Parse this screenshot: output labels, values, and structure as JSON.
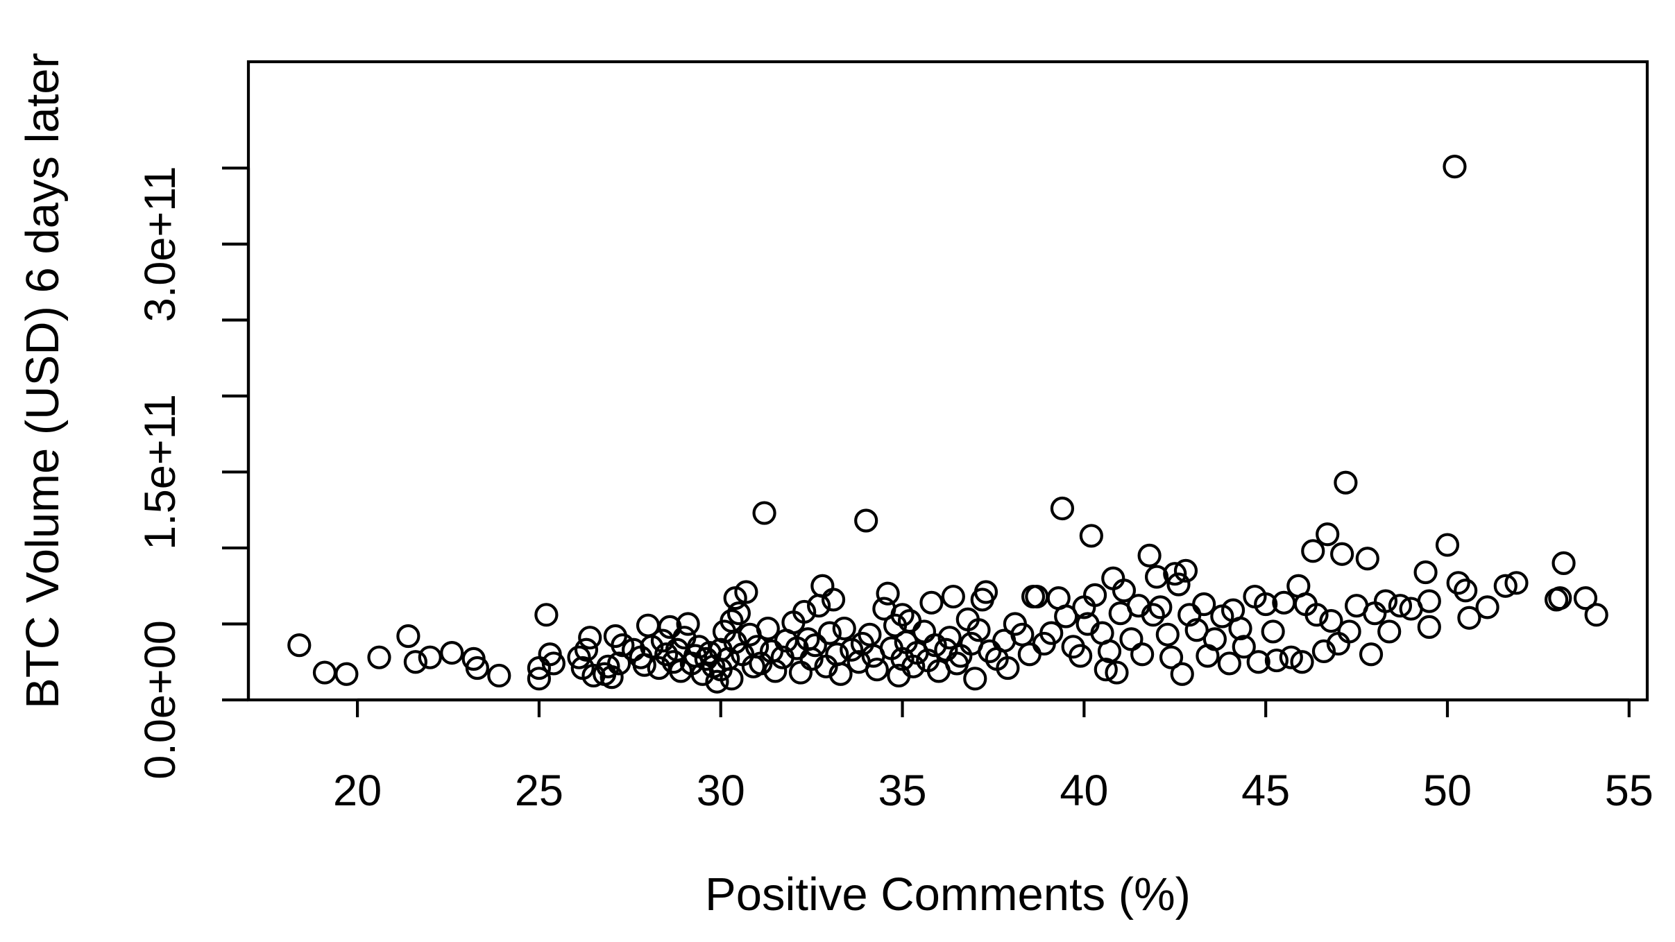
{
  "chart_data": {
    "type": "scatter",
    "title": "",
    "xlabel": "Positive Comments (%)",
    "ylabel": "BTC Volume (USD) 6 days later",
    "xlim": [
      17.0,
      55.5
    ],
    "ylim": [
      0,
      420000000000
    ],
    "grid": false,
    "legend": "none",
    "x_ticks": [
      {
        "value": 20,
        "label": "20"
      },
      {
        "value": 25,
        "label": "25"
      },
      {
        "value": 30,
        "label": "30"
      },
      {
        "value": 35,
        "label": "35"
      },
      {
        "value": 40,
        "label": "40"
      },
      {
        "value": 45,
        "label": "45"
      },
      {
        "value": 50,
        "label": "50"
      },
      {
        "value": 55,
        "label": "55"
      }
    ],
    "y_ticks": [
      0,
      50000000000,
      100000000000,
      150000000000,
      200000000000,
      250000000000,
      300000000000,
      350000000000
    ],
    "y_tick_labels": [
      {
        "value": 0,
        "label": "0.0e+00"
      },
      {
        "value": 150000000000,
        "label": "1.5e+11"
      },
      {
        "value": 300000000000,
        "label": "3.0e+11"
      }
    ],
    "series": [
      {
        "marker": "open-circle",
        "color": "#000000",
        "points": [
          [
            18.4,
            36000000000.0
          ],
          [
            19.1,
            18000000000.0
          ],
          [
            19.7,
            17000000000.0
          ],
          [
            20.6,
            28000000000.0
          ],
          [
            21.4,
            42000000000.0
          ],
          [
            21.6,
            25000000000.0
          ],
          [
            22.0,
            28000000000.0
          ],
          [
            22.6,
            31000000000.0
          ],
          [
            23.2,
            27000000000.0
          ],
          [
            23.3,
            21000000000.0
          ],
          [
            23.9,
            16000000000.0
          ],
          [
            25.0,
            21000000000.0
          ],
          [
            25.0,
            14000000000.0
          ],
          [
            25.2,
            56000000000.0
          ],
          [
            25.3,
            30000000000.0
          ],
          [
            25.4,
            24000000000.0
          ],
          [
            26.1,
            28000000000.0
          ],
          [
            26.2,
            21000000000.0
          ],
          [
            26.3,
            33000000000.0
          ],
          [
            26.4,
            41000000000.0
          ],
          [
            26.5,
            16000000000.0
          ],
          [
            26.8,
            17000000000.0
          ],
          [
            26.9,
            22000000000.0
          ],
          [
            27.0,
            15000000000.0
          ],
          [
            27.1,
            42000000000.0
          ],
          [
            27.2,
            24000000000.0
          ],
          [
            27.3,
            36000000000.0
          ],
          [
            27.6,
            33000000000.0
          ],
          [
            27.8,
            28000000000.0
          ],
          [
            27.9,
            23000000000.0
          ],
          [
            28.0,
            49000000000.0
          ],
          [
            28.1,
            35000000000.0
          ],
          [
            28.3,
            21000000000.0
          ],
          [
            28.4,
            39000000000.0
          ],
          [
            28.5,
            30000000000.0
          ],
          [
            28.6,
            48000000000.0
          ],
          [
            28.7,
            25000000000.0
          ],
          [
            28.8,
            33000000000.0
          ],
          [
            28.9,
            19000000000.0
          ],
          [
            29.0,
            41000000000.0
          ],
          [
            29.1,
            50000000000.0
          ],
          [
            29.2,
            24000000000.0
          ],
          [
            29.3,
            29000000000.0
          ],
          [
            29.4,
            35000000000.0
          ],
          [
            29.5,
            17000000000.0
          ],
          [
            29.6,
            27000000000.0
          ],
          [
            29.7,
            31000000000.0
          ],
          [
            29.8,
            22000000000.0
          ],
          [
            29.9,
            12000000000.0
          ],
          [
            30.0,
            33000000000.0
          ],
          [
            30.0,
            20000000000.0
          ],
          [
            30.1,
            45000000000.0
          ],
          [
            30.2,
            27000000000.0
          ],
          [
            30.3,
            52000000000.0
          ],
          [
            30.3,
            14000000000.0
          ],
          [
            30.4,
            38000000000.0
          ],
          [
            30.4,
            67000000000.0
          ],
          [
            30.5,
            57000000000.0
          ],
          [
            30.6,
            30000000000.0
          ],
          [
            30.7,
            71000000000.0
          ],
          [
            30.8,
            43000000000.0
          ],
          [
            30.9,
            22000000000.0
          ],
          [
            31.0,
            35000000000.0
          ],
          [
            31.1,
            24000000000.0
          ],
          [
            31.2,
            123000000000.0
          ],
          [
            31.3,
            47000000000.0
          ],
          [
            31.4,
            32000000000.0
          ],
          [
            31.5,
            19000000000.0
          ],
          [
            31.7,
            28000000000.0
          ],
          [
            31.8,
            39000000000.0
          ],
          [
            32.0,
            51000000000.0
          ],
          [
            32.1,
            34000000000.0
          ],
          [
            32.2,
            18000000000.0
          ],
          [
            32.3,
            58000000000.0
          ],
          [
            32.4,
            40000000000.0
          ],
          [
            32.5,
            27000000000.0
          ],
          [
            32.6,
            36000000000.0
          ],
          [
            32.7,
            62000000000.0
          ],
          [
            32.8,
            75000000000.0
          ],
          [
            32.9,
            22000000000.0
          ],
          [
            33.0,
            44000000000.0
          ],
          [
            33.1,
            66000000000.0
          ],
          [
            33.2,
            30000000000.0
          ],
          [
            33.3,
            17000000000.0
          ],
          [
            33.4,
            47000000000.0
          ],
          [
            33.6,
            33000000000.0
          ],
          [
            33.8,
            25000000000.0
          ],
          [
            33.9,
            37000000000.0
          ],
          [
            34.0,
            118000000000.0
          ],
          [
            34.1,
            43000000000.0
          ],
          [
            34.2,
            29000000000.0
          ],
          [
            34.3,
            20000000000.0
          ],
          [
            34.5,
            60000000000.0
          ],
          [
            34.6,
            70000000000.0
          ],
          [
            34.7,
            34000000000.0
          ],
          [
            34.8,
            49000000000.0
          ],
          [
            34.9,
            16000000000.0
          ],
          [
            35.0,
            56000000000.0
          ],
          [
            35.0,
            27000000000.0
          ],
          [
            35.1,
            38000000000.0
          ],
          [
            35.2,
            52000000000.0
          ],
          [
            35.3,
            22000000000.0
          ],
          [
            35.4,
            31000000000.0
          ],
          [
            35.6,
            45000000000.0
          ],
          [
            35.7,
            26000000000.0
          ],
          [
            35.8,
            64000000000.0
          ],
          [
            35.9,
            36000000000.0
          ],
          [
            36.0,
            19000000000.0
          ],
          [
            36.2,
            33000000000.0
          ],
          [
            36.3,
            41000000000.0
          ],
          [
            36.4,
            68000000000.0
          ],
          [
            36.5,
            24000000000.0
          ],
          [
            36.6,
            29000000000.0
          ],
          [
            36.8,
            53000000000.0
          ],
          [
            36.9,
            37000000000.0
          ],
          [
            37.0,
            14000000000.0
          ],
          [
            37.1,
            46000000000.0
          ],
          [
            37.2,
            66000000000.0
          ],
          [
            37.3,
            71000000000.0
          ],
          [
            37.4,
            32000000000.0
          ],
          [
            37.6,
            27000000000.0
          ],
          [
            37.8,
            39000000000.0
          ],
          [
            37.9,
            21000000000.0
          ],
          [
            38.1,
            50000000000.0
          ],
          [
            38.3,
            43000000000.0
          ],
          [
            38.5,
            30000000000.0
          ],
          [
            38.6,
            68000000000.0
          ],
          [
            38.7,
            68000000000.0
          ],
          [
            38.9,
            37000000000.0
          ],
          [
            39.1,
            44000000000.0
          ],
          [
            39.3,
            67000000000.0
          ],
          [
            39.4,
            126000000000.0
          ],
          [
            39.5,
            55000000000.0
          ],
          [
            39.7,
            35000000000.0
          ],
          [
            39.9,
            29000000000.0
          ],
          [
            40.0,
            61000000000.0
          ],
          [
            40.1,
            50000000000.0
          ],
          [
            40.2,
            108000000000.0
          ],
          [
            40.3,
            69000000000.0
          ],
          [
            40.5,
            44000000000.0
          ],
          [
            40.6,
            20000000000.0
          ],
          [
            40.7,
            32000000000.0
          ],
          [
            40.8,
            80000000000.0
          ],
          [
            40.9,
            18000000000.0
          ],
          [
            41.0,
            57000000000.0
          ],
          [
            41.1,
            72000000000.0
          ],
          [
            41.3,
            40000000000.0
          ],
          [
            41.5,
            62000000000.0
          ],
          [
            41.6,
            30000000000.0
          ],
          [
            41.8,
            95000000000.0
          ],
          [
            41.9,
            56000000000.0
          ],
          [
            42.0,
            81000000000.0
          ],
          [
            42.1,
            61000000000.0
          ],
          [
            42.3,
            43000000000.0
          ],
          [
            42.4,
            28000000000.0
          ],
          [
            42.5,
            83000000000.0
          ],
          [
            42.6,
            76000000000.0
          ],
          [
            42.7,
            17000000000.0
          ],
          [
            42.8,
            85000000000.0
          ],
          [
            42.9,
            56000000000.0
          ],
          [
            43.1,
            46000000000.0
          ],
          [
            43.3,
            63000000000.0
          ],
          [
            43.4,
            29000000000.0
          ],
          [
            43.6,
            40000000000.0
          ],
          [
            43.8,
            55000000000.0
          ],
          [
            44.0,
            24000000000.0
          ],
          [
            44.1,
            59000000000.0
          ],
          [
            44.3,
            47000000000.0
          ],
          [
            44.4,
            35000000000.0
          ],
          [
            44.7,
            68000000000.0
          ],
          [
            44.8,
            25000000000.0
          ],
          [
            45.0,
            63000000000.0
          ],
          [
            45.2,
            45000000000.0
          ],
          [
            45.3,
            26000000000.0
          ],
          [
            45.5,
            64000000000.0
          ],
          [
            45.7,
            28000000000.0
          ],
          [
            45.9,
            75000000000.0
          ],
          [
            46.0,
            25000000000.0
          ],
          [
            46.1,
            63000000000.0
          ],
          [
            46.3,
            98000000000.0
          ],
          [
            46.4,
            56000000000.0
          ],
          [
            46.6,
            32000000000.0
          ],
          [
            46.7,
            109000000000.0
          ],
          [
            46.8,
            52000000000.0
          ],
          [
            47.0,
            37000000000.0
          ],
          [
            47.1,
            96000000000.0
          ],
          [
            47.2,
            143000000000.0
          ],
          [
            47.3,
            45000000000.0
          ],
          [
            47.5,
            62000000000.0
          ],
          [
            47.8,
            93000000000.0
          ],
          [
            47.9,
            30000000000.0
          ],
          [
            48.0,
            57000000000.0
          ],
          [
            48.3,
            65000000000.0
          ],
          [
            48.4,
            45000000000.0
          ],
          [
            48.7,
            62000000000.0
          ],
          [
            49.0,
            60000000000.0
          ],
          [
            49.4,
            84000000000.0
          ],
          [
            49.5,
            65000000000.0
          ],
          [
            49.5,
            48000000000.0
          ],
          [
            50.0,
            102000000000.0
          ],
          [
            50.2,
            351000000000.0
          ],
          [
            50.3,
            77000000000.0
          ],
          [
            50.5,
            72000000000.0
          ],
          [
            50.6,
            54000000000.0
          ],
          [
            51.1,
            61000000000.0
          ],
          [
            51.6,
            75000000000.0
          ],
          [
            51.9,
            77000000000.0
          ],
          [
            53.0,
            66000000000.0
          ],
          [
            53.1,
            67000000000.0
          ],
          [
            53.2,
            90000000000.0
          ],
          [
            53.8,
            67000000000.0
          ],
          [
            54.1,
            56000000000.0
          ]
        ]
      }
    ]
  }
}
